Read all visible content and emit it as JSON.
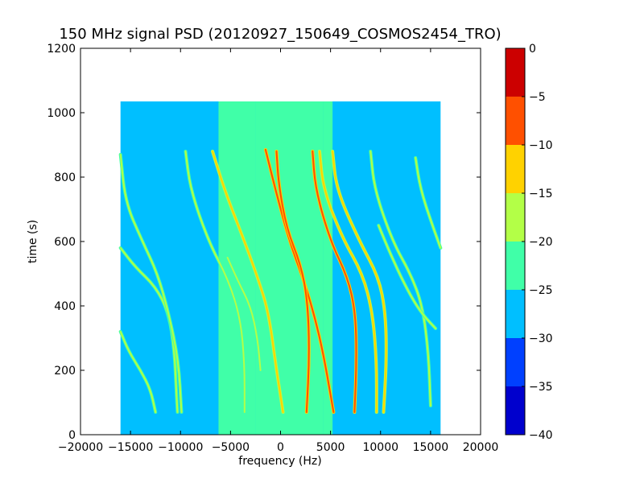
{
  "chart_data": {
    "type": "heatmap",
    "title": "150 MHz signal PSD (20120927_150649_COSMOS2454_TRO)",
    "xlabel": "frequency (Hz)",
    "ylabel": "time (s)",
    "xlim": [
      -20000,
      20000
    ],
    "ylim": [
      0,
      1200
    ],
    "x_ticks": [
      -20000,
      -15000,
      -10000,
      -5000,
      0,
      5000,
      10000,
      15000,
      20000
    ],
    "x_tick_labels": [
      "−20000",
      "−15000",
      "−10000",
      "−5000",
      "0",
      "5000",
      "10000",
      "15000",
      "20000"
    ],
    "y_ticks": [
      0,
      200,
      400,
      600,
      800,
      1000,
      1200
    ],
    "y_tick_labels": [
      "0",
      "200",
      "400",
      "600",
      "800",
      "1000",
      "1200"
    ],
    "data_extent": {
      "x": [
        -16000,
        16000
      ],
      "y": [
        0,
        1035
      ]
    },
    "colorbar": {
      "min": -40,
      "max": 0,
      "ticks": [
        0,
        -5,
        -10,
        -15,
        -20,
        -25,
        -30,
        -35,
        -40
      ],
      "tick_labels": [
        "0",
        "−5",
        "−10",
        "−15",
        "−20",
        "−25",
        "−30",
        "−35",
        "−40"
      ],
      "levels": [
        {
          "from": -40,
          "to": -35,
          "color": "#0000cd"
        },
        {
          "from": -35,
          "to": -30,
          "color": "#0040ff"
        },
        {
          "from": -30,
          "to": -25,
          "color": "#00bfff"
        },
        {
          "from": -25,
          "to": -20,
          "color": "#40ffa8"
        },
        {
          "from": -20,
          "to": -15,
          "color": "#b3ff47"
        },
        {
          "from": -15,
          "to": -10,
          "color": "#ffd200"
        },
        {
          "from": -10,
          "to": -5,
          "color": "#ff5000"
        },
        {
          "from": -5,
          "to": 0,
          "color": "#cc0000"
        }
      ]
    },
    "background_level": -27.5,
    "band_level": -22.5,
    "band_regions": [
      {
        "x": [
          -6200,
          -2500
        ],
        "y": [
          0,
          1035
        ]
      },
      {
        "x": [
          -2500,
          4300
        ],
        "y": [
          0,
          1035
        ]
      },
      {
        "x": [
          4300,
          5200
        ],
        "y": [
          0,
          1035
        ]
      }
    ],
    "traces": [
      {
        "name": "",
        "level": -12.5,
        "center_time": 470,
        "points": [
          [
            -6800,
            880
          ],
          [
            -5600,
            760
          ],
          [
            -3600,
            600
          ],
          [
            -2200,
            480
          ],
          [
            -1200,
            380
          ],
          [
            -400,
            200
          ],
          [
            250,
            70
          ]
        ]
      },
      {
        "name": "",
        "level": -7.5,
        "center_time": 480,
        "points": [
          [
            -1500,
            885
          ],
          [
            -500,
            760
          ],
          [
            800,
            610
          ],
          [
            2200,
            490
          ],
          [
            3300,
            380
          ],
          [
            4300,
            250
          ],
          [
            5300,
            70
          ]
        ]
      },
      {
        "name": "",
        "level": -10,
        "center_time": 470,
        "points": [
          [
            -400,
            880
          ],
          [
            -200,
            780
          ],
          [
            600,
            640
          ],
          [
            2000,
            530
          ],
          [
            2700,
            420
          ],
          [
            2900,
            250
          ],
          [
            2600,
            70
          ]
        ]
      },
      {
        "name": "",
        "level": -10,
        "center_time": 470,
        "points": [
          [
            3200,
            880
          ],
          [
            3500,
            760
          ],
          [
            5000,
            600
          ],
          [
            6700,
            490
          ],
          [
            7500,
            380
          ],
          [
            7600,
            230
          ],
          [
            7400,
            70
          ]
        ]
      },
      {
        "name": "",
        "level": -12.5,
        "center_time": 470,
        "points": [
          [
            3900,
            880
          ],
          [
            4300,
            760
          ],
          [
            6200,
            610
          ],
          [
            8200,
            500
          ],
          [
            9200,
            380
          ],
          [
            9600,
            230
          ],
          [
            9600,
            70
          ]
        ]
      },
      {
        "name": "",
        "level": -15,
        "center_time": 470,
        "points": [
          [
            5200,
            880
          ],
          [
            5600,
            760
          ],
          [
            7900,
            600
          ],
          [
            9800,
            490
          ],
          [
            10500,
            380
          ],
          [
            10600,
            230
          ],
          [
            10300,
            70
          ]
        ]
      },
      {
        "name": "",
        "level": -17.5,
        "center_time": 470,
        "points": [
          [
            -9500,
            880
          ],
          [
            -9000,
            760
          ],
          [
            -7200,
            600
          ],
          [
            -5200,
            480
          ],
          [
            -4000,
            360
          ],
          [
            -3600,
            220
          ],
          [
            -3600,
            70
          ]
        ]
      },
      {
        "name": "",
        "level": -17.5,
        "center_time": 470,
        "points": [
          [
            -16000,
            580
          ],
          [
            -14500,
            520
          ],
          [
            -12500,
            460
          ],
          [
            -11200,
            380
          ],
          [
            -10600,
            260
          ],
          [
            -10400,
            120
          ],
          [
            -10300,
            70
          ]
        ]
      },
      {
        "name": "",
        "level": -20,
        "center_time": 470,
        "points": [
          [
            -16000,
            870
          ],
          [
            -15500,
            720
          ],
          [
            -13800,
            600
          ],
          [
            -12300,
            500
          ],
          [
            -11200,
            380
          ],
          [
            -10200,
            230
          ],
          [
            -9900,
            70
          ]
        ]
      },
      {
        "name": "",
        "level": -20,
        "center_time": 470,
        "points": [
          [
            9000,
            880
          ],
          [
            9400,
            760
          ],
          [
            11200,
            600
          ],
          [
            13000,
            500
          ],
          [
            14200,
            400
          ],
          [
            14800,
            250
          ],
          [
            15000,
            90
          ]
        ]
      },
      {
        "name": "",
        "level": -17.5,
        "center_time": 470,
        "points": [
          [
            13500,
            860
          ],
          [
            14000,
            760
          ],
          [
            15300,
            640
          ],
          [
            16000,
            580
          ]
        ]
      },
      {
        "name": "",
        "level": -20,
        "center_time": 470,
        "points": [
          [
            -16000,
            320
          ],
          [
            -15200,
            260
          ],
          [
            -14000,
            200
          ],
          [
            -13000,
            140
          ],
          [
            -12500,
            70
          ]
        ]
      },
      {
        "name": "",
        "level": -20,
        "center_time": 470,
        "points": [
          [
            9800,
            650
          ],
          [
            11000,
            560
          ],
          [
            12500,
            460
          ],
          [
            14000,
            380
          ],
          [
            15500,
            330
          ]
        ]
      },
      {
        "name": "",
        "level": -17.5,
        "center_time": 470,
        "points": [
          [
            -5300,
            550
          ],
          [
            -4300,
            480
          ],
          [
            -3000,
            400
          ],
          [
            -2300,
            300
          ],
          [
            -2000,
            200
          ]
        ]
      }
    ]
  }
}
